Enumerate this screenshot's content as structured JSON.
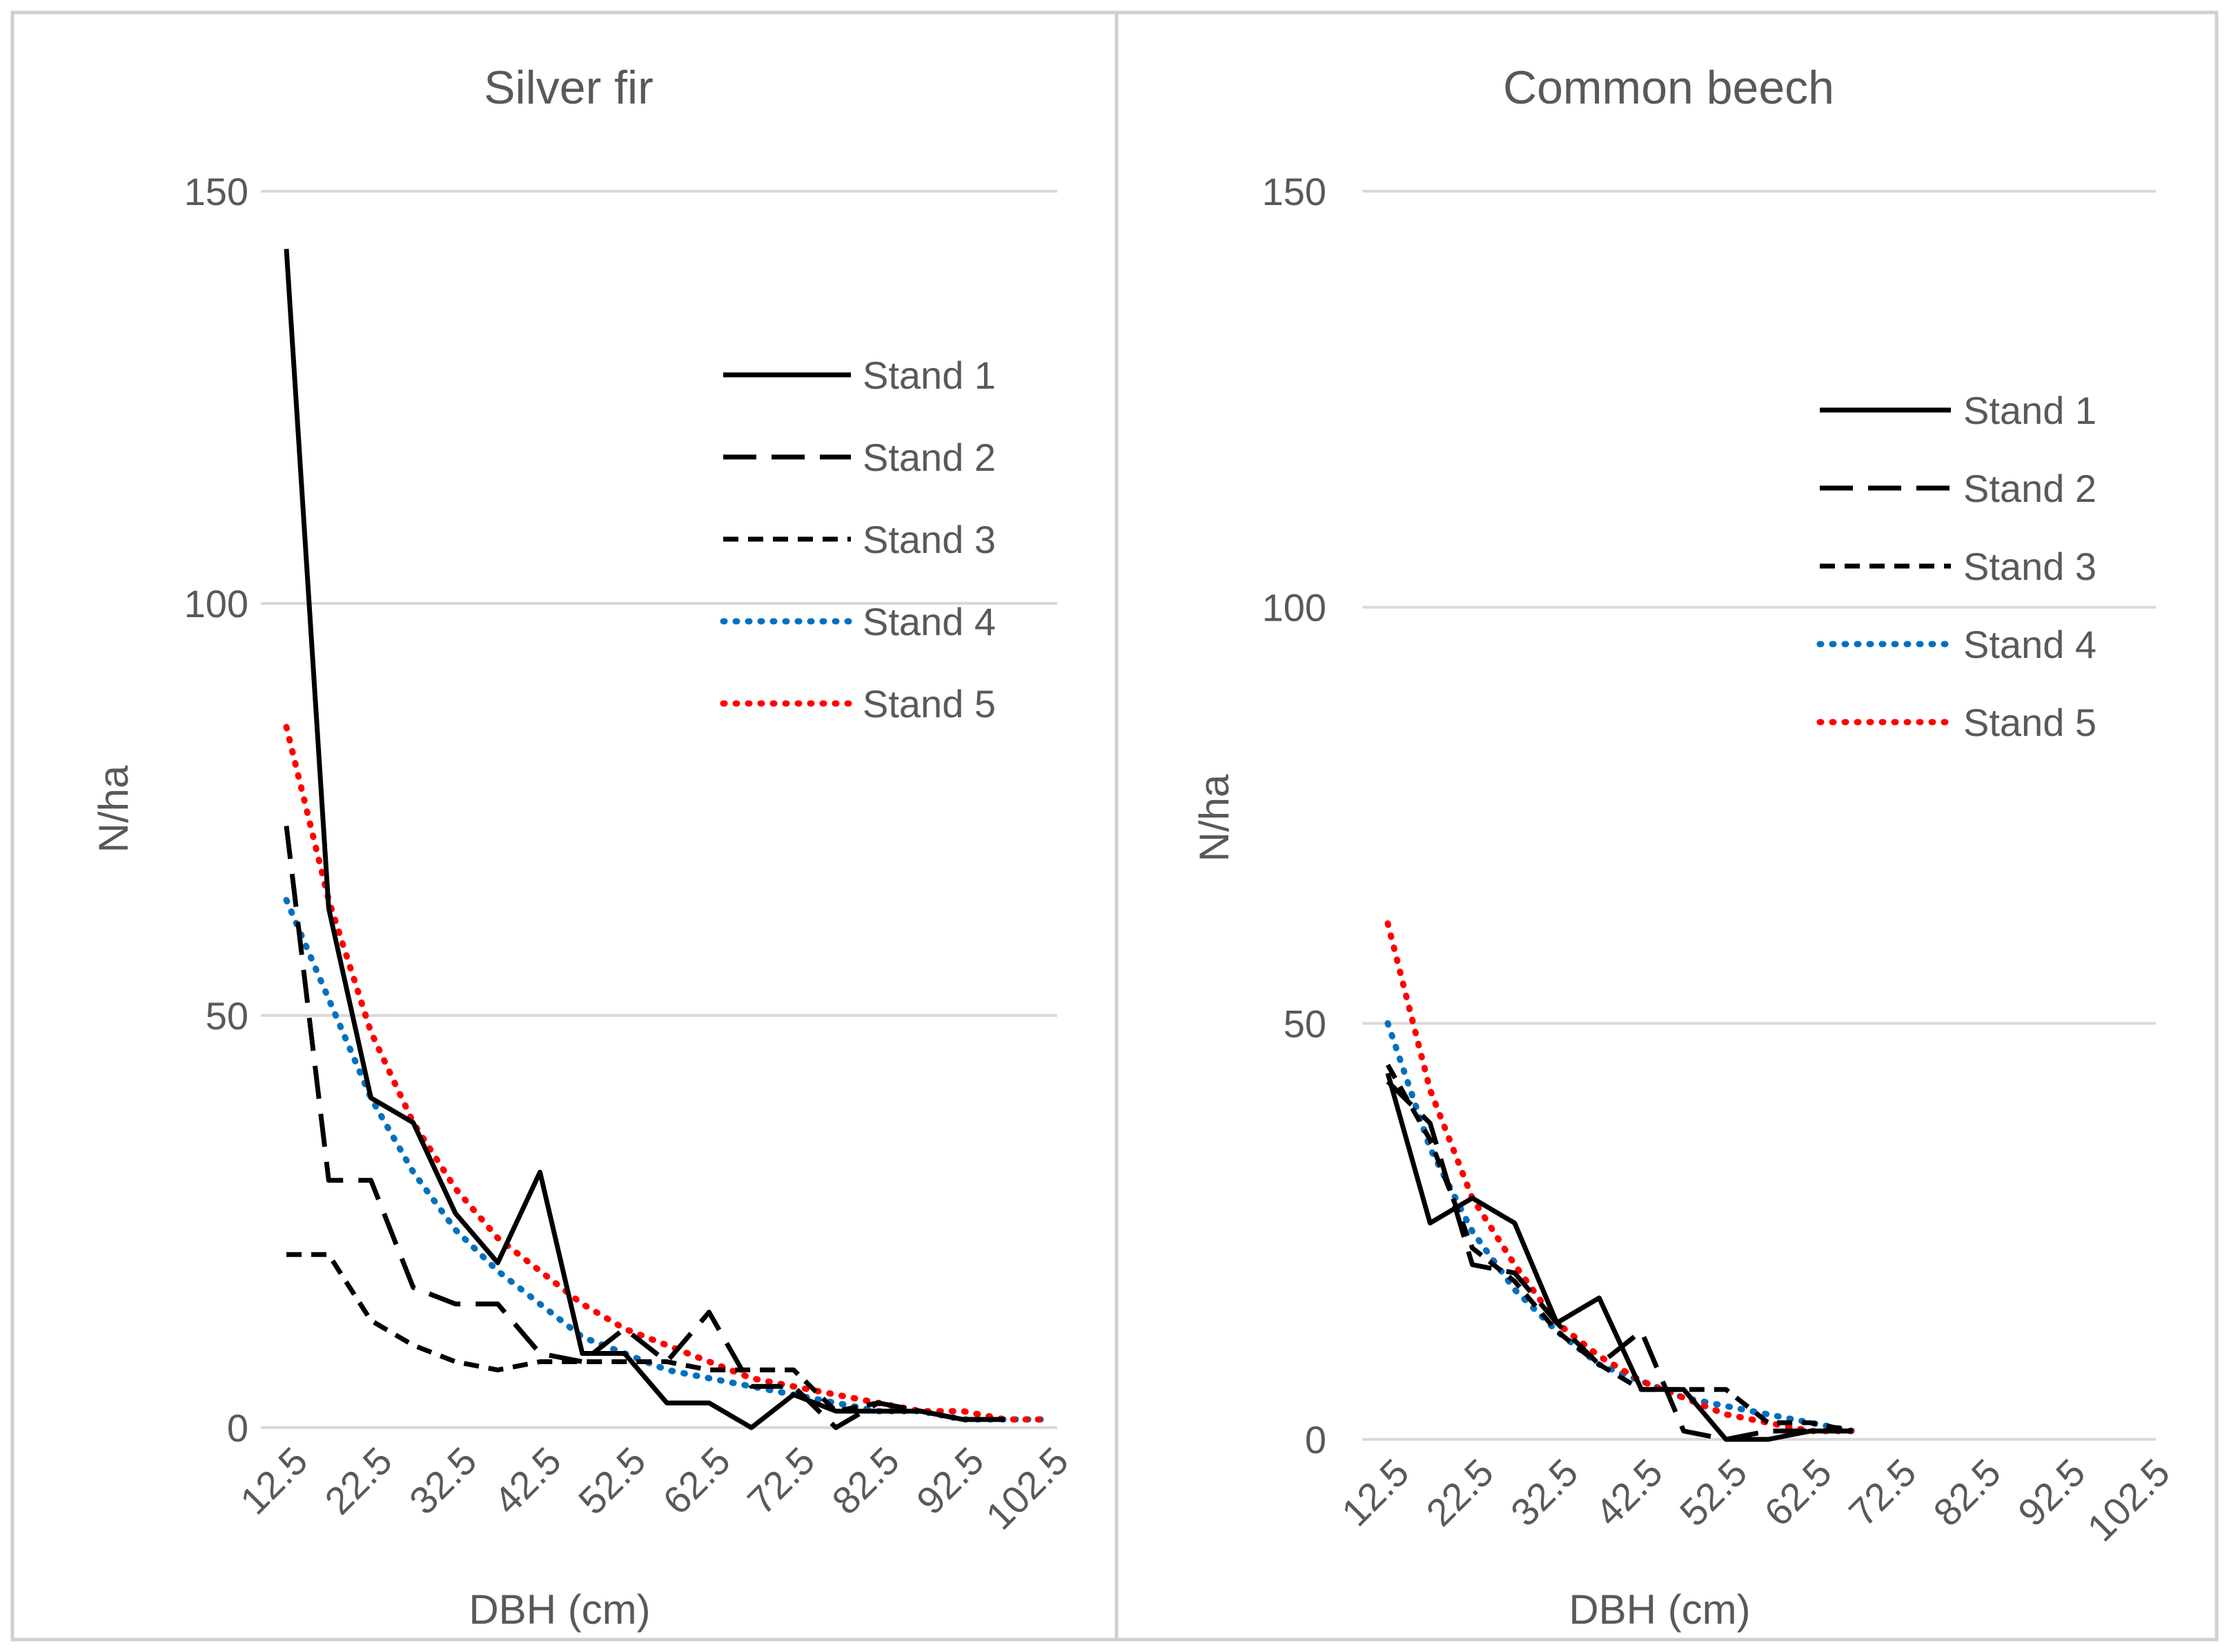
{
  "chart_data": [
    {
      "type": "line",
      "title": "Silver fir",
      "xlabel": "DBH (cm)",
      "ylabel": "N/ha",
      "ylim": [
        0,
        150
      ],
      "yticks": [
        0,
        50,
        100,
        150
      ],
      "categories": [
        "12.5",
        "17.5",
        "22.5",
        "27.5",
        "32.5",
        "37.5",
        "42.5",
        "47.5",
        "52.5",
        "57.5",
        "62.5",
        "67.5",
        "72.5",
        "77.5",
        "82.5",
        "87.5",
        "92.5",
        "97.5",
        "102.5"
      ],
      "tick_labels": [
        "12.5",
        "22.5",
        "32.5",
        "42.5",
        "52.5",
        "62.5",
        "72.5",
        "82.5",
        "92.5",
        "102.5"
      ],
      "grid": true,
      "legend_position": "top-right",
      "series": [
        {
          "name": "Stand 1",
          "style": "solid",
          "color": "#000000",
          "values": [
            143,
            63,
            40,
            37,
            26,
            20,
            31,
            9,
            9,
            3,
            3,
            0,
            4,
            2,
            2,
            2,
            1,
            1,
            null
          ]
        },
        {
          "name": "Stand 2",
          "style": "long-dash",
          "color": "#000000",
          "values": [
            73,
            30,
            30,
            17,
            15,
            15,
            9,
            8,
            12,
            8,
            14,
            5,
            5,
            0,
            3,
            2,
            1,
            1,
            null
          ]
        },
        {
          "name": "Stand 3",
          "style": "short-dash",
          "color": "#000000",
          "values": [
            21,
            21,
            13,
            10,
            8,
            7,
            8,
            8,
            8,
            8,
            7,
            7,
            7,
            2,
            3,
            2,
            1,
            1,
            null
          ]
        },
        {
          "name": "Stand 4",
          "style": "dotted",
          "color": "#0070C0",
          "values": [
            64,
            52,
            40,
            31,
            24,
            19,
            15,
            11,
            9,
            7,
            6,
            5,
            4,
            3,
            2,
            2,
            1,
            1,
            1
          ]
        },
        {
          "name": "Stand 5",
          "style": "dotted",
          "color": "#FF0000",
          "values": [
            85,
            64,
            48,
            37,
            29,
            23,
            19,
            15,
            12,
            10,
            8,
            6,
            5,
            4,
            3,
            2,
            2,
            1,
            1
          ]
        }
      ]
    },
    {
      "type": "line",
      "title": "Common beech",
      "xlabel": "DBH (cm)",
      "ylabel": "N/ha",
      "ylim": [
        0,
        150
      ],
      "yticks": [
        0,
        50,
        100,
        150
      ],
      "categories": [
        "12.5",
        "17.5",
        "22.5",
        "27.5",
        "32.5",
        "37.5",
        "42.5",
        "47.5",
        "52.5",
        "57.5",
        "62.5",
        "67.5",
        "72.5",
        "77.5",
        "82.5",
        "87.5",
        "92.5",
        "97.5",
        "102.5"
      ],
      "tick_labels": [
        "12.5",
        "22.5",
        "32.5",
        "42.5",
        "52.5",
        "62.5",
        "72.5",
        "82.5",
        "92.5",
        "102.5"
      ],
      "grid": true,
      "legend_position": "top-right",
      "series": [
        {
          "name": "Stand 1",
          "style": "solid",
          "color": "#000000",
          "values": [
            44,
            26,
            29,
            26,
            14,
            17,
            6,
            6,
            0,
            0,
            1,
            1,
            null,
            null,
            null,
            null,
            null,
            null,
            null
          ]
        },
        {
          "name": "Stand 2",
          "style": "long-dash",
          "color": "#000000",
          "values": [
            43,
            38,
            21,
            20,
            14,
            9,
            13,
            1,
            0,
            1,
            1,
            1,
            null,
            null,
            null,
            null,
            null,
            null,
            null
          ]
        },
        {
          "name": "Stand 3",
          "style": "short-dash",
          "color": "#000000",
          "values": [
            45,
            36,
            23,
            19,
            13,
            9,
            6,
            6,
            6,
            2,
            2,
            1,
            null,
            null,
            null,
            null,
            null,
            null,
            null
          ]
        },
        {
          "name": "Stand 4",
          "style": "dotted",
          "color": "#0070C0",
          "values": [
            50,
            35,
            25,
            18,
            13,
            9,
            7,
            5,
            4,
            3,
            2,
            1,
            null,
            null,
            null,
            null,
            null,
            null,
            null
          ]
        },
        {
          "name": "Stand 5",
          "style": "dotted",
          "color": "#FF0000",
          "values": [
            62,
            42,
            29,
            21,
            14,
            10,
            7,
            5,
            3,
            2,
            1,
            1,
            null,
            null,
            null,
            null,
            null,
            null,
            null
          ]
        }
      ]
    }
  ]
}
